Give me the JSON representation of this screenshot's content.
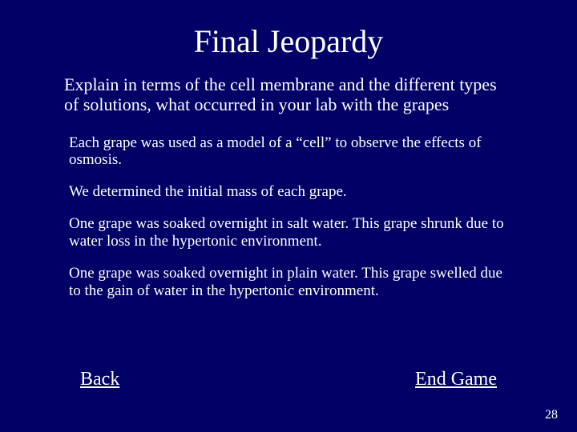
{
  "title": "Final Jeopardy",
  "question": "Explain in terms of the cell membrane and the different types of solutions, what occurred in your lab with the grapes",
  "answers": {
    "p1": "Each grape was used as a model of a “cell” to observe the effects of osmosis.",
    "p2": "We determined the initial mass of each grape.",
    "p3": "One grape was soaked overnight in salt water.  This grape shrunk due to water loss in the hypertonic environment.",
    "p4": "One grape was soaked overnight in plain water.  This grape swelled due to the gain of water in the hypertonic environment."
  },
  "nav": {
    "back": "Back",
    "end": "End Game"
  },
  "page_number": "28",
  "colors": {
    "background": "#000066",
    "text": "#ffffff"
  }
}
